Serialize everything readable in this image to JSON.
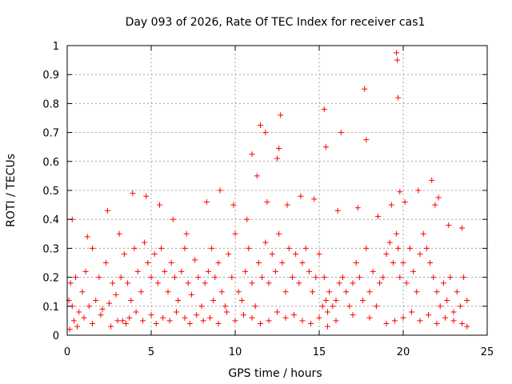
{
  "chart_data": {
    "type": "scatter",
    "title": "Day 093 of 2026, Rate Of TEC Index for receiver cas1",
    "xlabel": "GPS time / hours",
    "ylabel": "ROTI / TECUs",
    "xlim": [
      0,
      25
    ],
    "ylim": [
      0,
      1
    ],
    "xticks": [
      "0",
      "5",
      "10",
      "15",
      "20",
      "25"
    ],
    "xtick_values": [
      0,
      5,
      10,
      15,
      20,
      25
    ],
    "yticks": [
      "0",
      "0.1",
      "0.2",
      "0.3",
      "0.4",
      "0.5",
      "0.6",
      "0.7",
      "0.8",
      "0.9",
      "1"
    ],
    "ytick_values": [
      0,
      0.1,
      0.2,
      0.3,
      0.4,
      0.5,
      0.6,
      0.7,
      0.8,
      0.9,
      1
    ],
    "grid": true,
    "marker": "plus",
    "color": "#ff0000",
    "series": [
      {
        "x": [
          0.1,
          0.2,
          0.3,
          0.5,
          0.7,
          0.9,
          1.1,
          1.3,
          1.5,
          1.7,
          1.9,
          2.1,
          2.3,
          2.5,
          2.7,
          2.9,
          3.1,
          3.2,
          3.3,
          3.4,
          3.6,
          3.8,
          4.0,
          4.2,
          4.4,
          4.6,
          4.8,
          5.0,
          5.2,
          5.4,
          5.6,
          5.8,
          6.0,
          6.2,
          6.4,
          6.6,
          6.8,
          7.0,
          7.2,
          7.4,
          7.6,
          7.8,
          8.0,
          8.2,
          8.4,
          8.6,
          8.7,
          8.8,
          9.0,
          9.2,
          9.4,
          9.6,
          9.8,
          10.0,
          10.2,
          10.4,
          10.6,
          10.8,
          11.0,
          11.2,
          11.4,
          11.6,
          11.8,
          12.0,
          12.2,
          12.4,
          12.6,
          12.8,
          13.0,
          13.2,
          13.4,
          13.6,
          13.8,
          14.0,
          14.2,
          14.4,
          14.6,
          14.8,
          15.0,
          15.2,
          15.3,
          15.4,
          15.5,
          15.6,
          15.8,
          16.0,
          16.2,
          16.4,
          16.6,
          16.8,
          17.0,
          17.2,
          17.4,
          17.6,
          17.8,
          18.0,
          18.2,
          18.4,
          18.6,
          18.8,
          19.0,
          19.2,
          19.4,
          19.6,
          19.7,
          19.8,
          20.0,
          20.2,
          20.4,
          20.6,
          20.8,
          21.0,
          21.2,
          21.4,
          21.6,
          21.8,
          22.0,
          22.2,
          22.4,
          22.6,
          22.8,
          23.0,
          23.2,
          23.4,
          23.6,
          23.8,
          0.15,
          0.4,
          0.6,
          1.0,
          1.5,
          2.0,
          2.6,
          3.0,
          3.5,
          3.7,
          4.1,
          4.5,
          5.0,
          5.3,
          5.7,
          6.1,
          6.5,
          7.0,
          7.3,
          7.7,
          8.1,
          8.5,
          9.0,
          9.5,
          10.0,
          10.5,
          11.0,
          11.5,
          12.0,
          12.5,
          13.0,
          13.5,
          14.0,
          14.5,
          15.0,
          15.5,
          16.0,
          17.0,
          18.0,
          19.0,
          19.5,
          20.0,
          20.5,
          21.0,
          21.5,
          22.0,
          22.5,
          23.0,
          23.5,
          23.8,
          11.0,
          11.3,
          11.5,
          11.8,
          12.5,
          12.6,
          12.7,
          15.3,
          15.4,
          16.3,
          17.7,
          17.8,
          19.6,
          19.65,
          19.7,
          19.8,
          21.7,
          22.1,
          0.3,
          1.2,
          2.4,
          3.9,
          4.7,
          5.5,
          6.3,
          7.1,
          8.3,
          9.1,
          9.9,
          10.7,
          11.9,
          13.1,
          13.9,
          14.7,
          16.1,
          17.3,
          18.5,
          19.3,
          20.1,
          20.9,
          21.9,
          22.7,
          23.5
        ],
        "y": [
          0.12,
          0.18,
          0.1,
          0.2,
          0.08,
          0.15,
          0.22,
          0.1,
          0.3,
          0.12,
          0.2,
          0.09,
          0.25,
          0.11,
          0.18,
          0.14,
          0.35,
          0.2,
          0.05,
          0.28,
          0.18,
          0.12,
          0.3,
          0.22,
          0.15,
          0.32,
          0.25,
          0.2,
          0.28,
          0.18,
          0.3,
          0.22,
          0.15,
          0.25,
          0.2,
          0.12,
          0.22,
          0.3,
          0.18,
          0.14,
          0.26,
          0.2,
          0.1,
          0.18,
          0.22,
          0.3,
          0.12,
          0.2,
          0.25,
          0.15,
          0.1,
          0.28,
          0.2,
          0.35,
          0.15,
          0.12,
          0.22,
          0.3,
          0.18,
          0.1,
          0.25,
          0.2,
          0.32,
          0.18,
          0.28,
          0.22,
          0.35,
          0.25,
          0.15,
          0.3,
          0.2,
          0.28,
          0.18,
          0.25,
          0.3,
          0.22,
          0.15,
          0.2,
          0.28,
          0.1,
          0.2,
          0.12,
          0.08,
          0.15,
          0.1,
          0.12,
          0.18,
          0.2,
          0.15,
          0.1,
          0.18,
          0.25,
          0.2,
          0.12,
          0.3,
          0.15,
          0.22,
          0.1,
          0.18,
          0.2,
          0.28,
          0.32,
          0.25,
          0.35,
          0.3,
          0.2,
          0.25,
          0.18,
          0.3,
          0.22,
          0.15,
          0.28,
          0.35,
          0.3,
          0.25,
          0.2,
          0.15,
          0.1,
          0.18,
          0.12,
          0.2,
          0.08,
          0.15,
          0.1,
          0.2,
          0.12,
          0.02,
          0.05,
          0.03,
          0.06,
          0.04,
          0.07,
          0.03,
          0.05,
          0.04,
          0.06,
          0.08,
          0.05,
          0.07,
          0.04,
          0.06,
          0.05,
          0.08,
          0.06,
          0.04,
          0.07,
          0.05,
          0.06,
          0.04,
          0.08,
          0.05,
          0.07,
          0.06,
          0.04,
          0.05,
          0.08,
          0.06,
          0.07,
          0.05,
          0.04,
          0.06,
          0.03,
          0.05,
          0.07,
          0.06,
          0.04,
          0.05,
          0.06,
          0.08,
          0.05,
          0.07,
          0.04,
          0.06,
          0.05,
          0.04,
          0.03,
          0.625,
          0.55,
          0.725,
          0.7,
          0.61,
          0.645,
          0.76,
          0.78,
          0.65,
          0.7,
          0.85,
          0.675,
          0.975,
          0.95,
          0.82,
          0.495,
          0.535,
          0.475,
          0.4,
          0.34,
          0.43,
          0.49,
          0.48,
          0.45,
          0.4,
          0.35,
          0.46,
          0.5,
          0.45,
          0.4,
          0.46,
          0.45,
          0.48,
          0.47,
          0.43,
          0.44,
          0.41,
          0.45,
          0.46,
          0.5,
          0.45,
          0.38,
          0.37
        ]
      }
    ]
  }
}
